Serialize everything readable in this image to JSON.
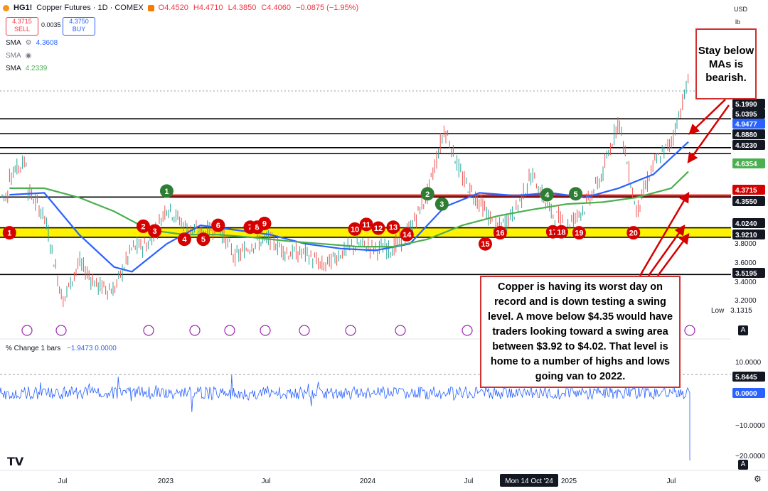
{
  "header": {
    "symbol": "HG1!",
    "title": "Copper Futures · 1D · COMEX",
    "open": "O4.4520",
    "high": "H4.4710",
    "low": "L4.3850",
    "close": "C4.4060",
    "change": "−0.0875 (−1.95%)"
  },
  "trade": {
    "sell_price": "4.3715",
    "sell_label": "SELL",
    "spread": "0.0035",
    "buy_price": "4.3750",
    "buy_label": "BUY"
  },
  "indicators": [
    {
      "label": "SMA",
      "value": "4.3608",
      "color": "#2962ff"
    },
    {
      "label": "SMA",
      "value": "",
      "color": "#787b86"
    },
    {
      "label": "SMA",
      "value": "4.2339",
      "color": "#4caf50"
    }
  ],
  "pct_panel": {
    "label": "% Change 1 bars",
    "values": "−1.9473  0.0000"
  },
  "axis": {
    "currency": "USD",
    "unit": "lb",
    "low_label": "Low",
    "low_value": "3.1315",
    "x_ticks": [
      "Jul",
      "2023",
      "Jul",
      "2024",
      "Jul",
      "Mon 14 Oct '24",
      "2025",
      "Jul"
    ]
  },
  "annotations": {
    "top_right": "Stay below MAs is bearish.",
    "main": "Copper is having its worst day on record and is down testing a swing level.  A move below $4.35 would have traders looking toward a swing area between $3.92 to $4.02. That level is home to a number of highs and lows going van to 2022."
  },
  "colors": {
    "red_line": "#e0201c",
    "yellow_zone": "#fff200",
    "sma_blue": "#2962ff",
    "sma_green": "#4caf50",
    "bull": "#26a69a",
    "bear": "#ef5350",
    "label_red": "#d50000",
    "label_green": "#2e7d32"
  },
  "chart_data": {
    "type": "line",
    "title": "Copper Futures · 1D · COMEX",
    "y_ticks": [
      "3.2000",
      "3.4000",
      "3.6000",
      "3.8000"
    ],
    "price_labels": [
      {
        "value": "5.1990",
        "style": "level"
      },
      {
        "value": "5.0395",
        "style": "level"
      },
      {
        "value": "4.9477",
        "style": "blue"
      },
      {
        "value": "4.8880",
        "style": "level"
      },
      {
        "value": "4.8230",
        "style": "level"
      },
      {
        "value": "4.6354",
        "style": "green"
      },
      {
        "value": "4.3715",
        "style": "red"
      },
      {
        "value": "4.3550",
        "style": "level"
      },
      {
        "value": "4.0240",
        "style": "level"
      },
      {
        "value": "3.9210",
        "style": "level"
      },
      {
        "value": "3.5195",
        "style": "level"
      }
    ],
    "pct_ticks": [
      {
        "value": "10.0000",
        "style": "plain"
      },
      {
        "value": "5.8445",
        "style": "level"
      },
      {
        "value": "0.0000",
        "style": "blue"
      },
      {
        "value": "−10.0000",
        "style": "plain"
      },
      {
        "value": "−20.0000",
        "style": "plain"
      }
    ],
    "horizontal_levels": [
      5.199,
      5.0395,
      4.888,
      4.823,
      4.355,
      4.024,
      3.921,
      3.5195
    ],
    "swing_zone": [
      3.921,
      4.024
    ],
    "red_level": 4.3715,
    "price_path": [
      [
        "2022-04",
        4.6
      ],
      [
        "2022-05",
        4.75
      ],
      [
        "2022-05",
        4.45
      ],
      [
        "2022-06",
        4.15
      ],
      [
        "2022-07",
        3.3
      ],
      [
        "2022-07",
        3.2
      ],
      [
        "2022-08",
        3.65
      ],
      [
        "2022-09",
        3.4
      ],
      [
        "2022-10",
        3.35
      ],
      [
        "2022-11",
        3.8
      ],
      [
        "2022-12",
        3.85
      ],
      [
        "2023-01",
        4.25
      ],
      [
        "2023-02",
        4.05
      ],
      [
        "2023-03",
        3.95
      ],
      [
        "2023-04",
        4.05
      ],
      [
        "2023-05",
        3.7
      ],
      [
        "2023-06",
        3.85
      ],
      [
        "2023-07",
        3.9
      ],
      [
        "2023-08",
        3.75
      ],
      [
        "2023-09",
        3.75
      ],
      [
        "2023-10",
        3.6
      ],
      [
        "2023-11",
        3.75
      ],
      [
        "2023-12",
        3.85
      ],
      [
        "2024-01",
        3.8
      ],
      [
        "2024-02",
        3.8
      ],
      [
        "2024-03",
        4.0
      ],
      [
        "2024-04",
        4.4
      ],
      [
        "2024-05",
        5.1
      ],
      [
        "2024-06",
        4.55
      ],
      [
        "2024-07",
        4.3
      ],
      [
        "2024-08",
        4.0
      ],
      [
        "2024-09",
        4.2
      ],
      [
        "2024-10",
        4.6
      ],
      [
        "2024-11",
        4.2
      ],
      [
        "2024-12",
        4.05
      ],
      [
        "2025-01",
        4.25
      ],
      [
        "2025-02",
        4.6
      ],
      [
        "2025-03",
        5.2
      ],
      [
        "2025-04",
        4.2
      ],
      [
        "2025-05",
        4.7
      ],
      [
        "2025-06",
        4.95
      ],
      [
        "2025-07",
        5.6
      ],
      [
        "2025-07",
        5.45
      ],
      [
        "2025-07",
        4.37
      ]
    ],
    "sma_blue_path": [
      [
        "2022-04",
        4.38
      ],
      [
        "2022-06",
        4.4
      ],
      [
        "2022-08",
        3.95
      ],
      [
        "2022-10",
        3.6
      ],
      [
        "2022-11",
        3.55
      ],
      [
        "2023-01",
        3.85
      ],
      [
        "2023-03",
        4.05
      ],
      [
        "2023-05",
        4.0
      ],
      [
        "2023-07",
        3.95
      ],
      [
        "2023-09",
        3.85
      ],
      [
        "2023-11",
        3.8
      ],
      [
        "2024-01",
        3.78
      ],
      [
        "2024-03",
        3.85
      ],
      [
        "2024-05",
        4.25
      ],
      [
        "2024-07",
        4.4
      ],
      [
        "2024-09",
        4.37
      ],
      [
        "2024-11",
        4.4
      ],
      [
        "2025-01",
        4.35
      ],
      [
        "2025-03",
        4.45
      ],
      [
        "2025-05",
        4.6
      ],
      [
        "2025-07",
        4.95
      ]
    ],
    "sma_green_path": [
      [
        "2022-04",
        4.45
      ],
      [
        "2022-06",
        4.45
      ],
      [
        "2022-08",
        4.35
      ],
      [
        "2022-10",
        4.2
      ],
      [
        "2022-12",
        4.0
      ],
      [
        "2023-02",
        3.95
      ],
      [
        "2023-04",
        3.95
      ],
      [
        "2023-06",
        3.92
      ],
      [
        "2023-08",
        3.88
      ],
      [
        "2023-10",
        3.85
      ],
      [
        "2023-12",
        3.82
      ],
      [
        "2024-02",
        3.82
      ],
      [
        "2024-04",
        3.9
      ],
      [
        "2024-06",
        4.05
      ],
      [
        "2024-08",
        4.15
      ],
      [
        "2024-10",
        4.22
      ],
      [
        "2024-12",
        4.28
      ],
      [
        "2025-02",
        4.3
      ],
      [
        "2025-04",
        4.35
      ],
      [
        "2025-06",
        4.45
      ],
      [
        "2025-07",
        4.63
      ]
    ],
    "markers": [
      {
        "label": "1",
        "kind": "red",
        "date": "2022-04-15",
        "price": 3.97
      },
      {
        "label": "2",
        "kind": "red",
        "date": "2022-12-05",
        "price": 4.04
      },
      {
        "label": "3",
        "kind": "red",
        "date": "2022-12-25",
        "price": 3.99
      },
      {
        "label": "4",
        "kind": "red",
        "date": "2023-02-15",
        "price": 3.9
      },
      {
        "label": "5",
        "kind": "red",
        "date": "2023-03-20",
        "price": 3.9
      },
      {
        "label": "6",
        "kind": "red",
        "date": "2023-04-15",
        "price": 4.05
      },
      {
        "label": "7",
        "kind": "red",
        "date": "2023-06-10",
        "price": 4.03
      },
      {
        "label": "8",
        "kind": "red",
        "date": "2023-06-22",
        "price": 4.03
      },
      {
        "label": "9",
        "kind": "red",
        "date": "2023-07-05",
        "price": 4.07
      },
      {
        "label": "10",
        "kind": "red",
        "date": "2023-12-10",
        "price": 4.01
      },
      {
        "label": "11",
        "kind": "red",
        "date": "2023-12-30",
        "price": 4.06
      },
      {
        "label": "12",
        "kind": "red",
        "date": "2024-01-20",
        "price": 4.02
      },
      {
        "label": "13",
        "kind": "red",
        "date": "2024-02-15",
        "price": 4.03
      },
      {
        "label": "14",
        "kind": "red",
        "date": "2024-03-10",
        "price": 3.95
      },
      {
        "label": "15",
        "kind": "red",
        "date": "2024-07-25",
        "price": 3.85
      },
      {
        "label": "16",
        "kind": "red",
        "date": "2024-08-20",
        "price": 3.97
      },
      {
        "label": "17",
        "kind": "red",
        "date": "2024-11-20",
        "price": 3.98
      },
      {
        "label": "18",
        "kind": "red",
        "date": "2024-12-05",
        "price": 3.98
      },
      {
        "label": "19",
        "kind": "red",
        "date": "2025-01-05",
        "price": 3.97
      },
      {
        "label": "20",
        "kind": "red",
        "date": "2025-04-10",
        "price": 3.97
      },
      {
        "label": "1",
        "kind": "green",
        "date": "2023-01-15",
        "price": 4.42
      },
      {
        "label": "2",
        "kind": "green",
        "date": "2024-04-15",
        "price": 4.39
      },
      {
        "label": "3",
        "kind": "green",
        "date": "2024-05-10",
        "price": 4.28
      },
      {
        "label": "4",
        "kind": "green",
        "date": "2024-11-10",
        "price": 4.38
      },
      {
        "label": "5",
        "kind": "green",
        "date": "2024-12-30",
        "price": 4.39
      }
    ]
  }
}
